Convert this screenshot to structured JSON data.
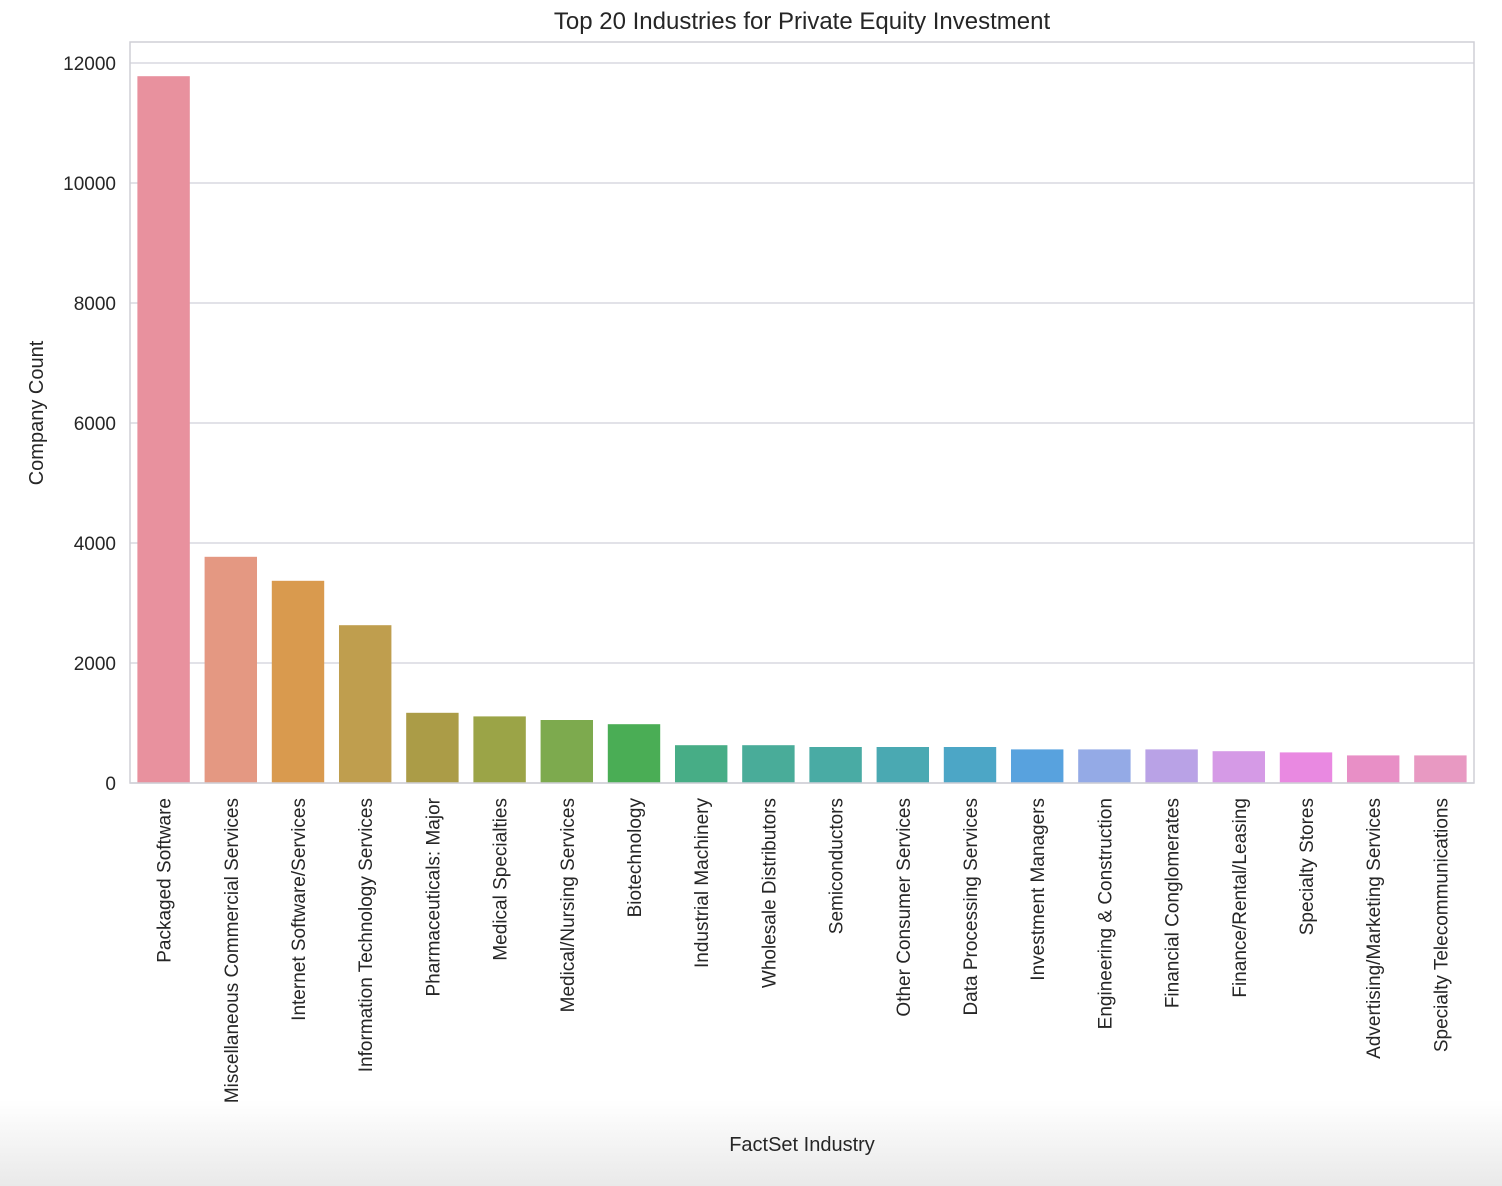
{
  "chart_data": {
    "type": "bar",
    "title": "Top 20 Industries for Private Equity Investment",
    "xlabel": "FactSet Industry",
    "ylabel": "Company Count",
    "ylim": [
      0,
      12350
    ],
    "yticks": [
      0,
      2000,
      4000,
      6000,
      8000,
      10000,
      12000
    ],
    "grid": true,
    "categories": [
      "Packaged Software",
      "Miscellaneous Commercial Services",
      "Internet Software/Services",
      "Information Technology Services",
      "Pharmaceuticals: Major",
      "Medical Specialties",
      "Medical/Nursing Services",
      "Biotechnology",
      "Industrial Machinery",
      "Wholesale Distributors",
      "Semiconductors",
      "Other Consumer Services",
      "Data Processing Services",
      "Investment Managers",
      "Engineering & Construction",
      "Financial Conglomerates",
      "Finance/Rental/Leasing",
      "Specialty Stores",
      "Advertising/Marketing Services",
      "Specialty Telecommunications"
    ],
    "values": [
      11780,
      3770,
      3370,
      2630,
      1170,
      1110,
      1050,
      980,
      630,
      630,
      600,
      600,
      600,
      560,
      560,
      560,
      530,
      510,
      460,
      460
    ],
    "colors": [
      "#e8919e",
      "#e49882",
      "#d99a4e",
      "#bf9e4e",
      "#ab9c47",
      "#9ba447",
      "#7daa4e",
      "#4aad55",
      "#47ad86",
      "#49ac99",
      "#49aba4",
      "#4aa9b2",
      "#4ca6c6",
      "#58a2de",
      "#94aae6",
      "#b9a2e6",
      "#d59ae6",
      "#e989e1",
      "#e88fc6",
      "#e899c2"
    ]
  }
}
